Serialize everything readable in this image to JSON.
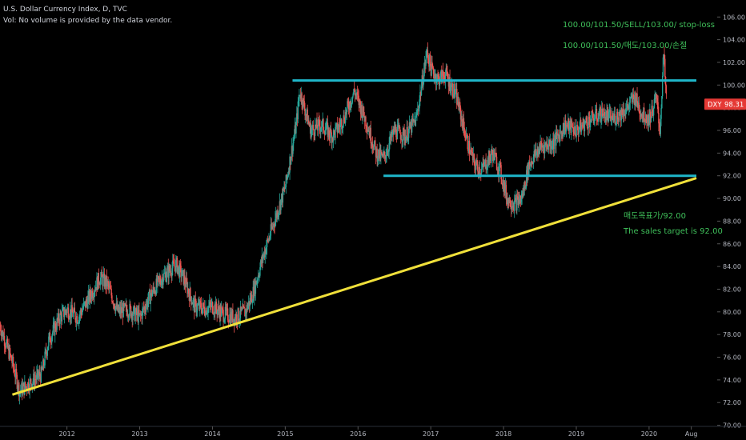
{
  "header": {
    "title": "U.S. Dollar Currency Index, D, TVC",
    "volume_note": "Vol: No volume is provided by the data vendor."
  },
  "price_badge": {
    "symbol": "DXY",
    "value": "98.31",
    "color": "#e53935"
  },
  "annotations": {
    "line1": "100.00/101.50/SELL/103.00/ stop-loss",
    "line2": "100.00/101.50/매도/103.00/손절",
    "line3": "매도목표가/92.00",
    "line4": "The sales target is 92.00"
  },
  "chart_data": {
    "type": "candlestick",
    "x_ticks": [
      "2012",
      "2013",
      "2014",
      "2015",
      "2016",
      "2017",
      "2018",
      "2019",
      "2020",
      "Aug"
    ],
    "y_ticks": [
      "70.00",
      "72.00",
      "74.00",
      "76.00",
      "78.00",
      "80.00",
      "82.00",
      "84.00",
      "86.00",
      "88.00",
      "90.00",
      "92.00",
      "94.00",
      "96.00",
      "98.00",
      "100.00",
      "102.00",
      "104.00",
      "106.00"
    ],
    "ylim": [
      68.7,
      107.5
    ],
    "xlim": [
      2011.08,
      2020.65
    ],
    "last_price": 98.31,
    "price_path": [
      [
        2011.08,
        78.8
      ],
      [
        2011.25,
        75.5
      ],
      [
        2011.35,
        73.0
      ],
      [
        2011.5,
        73.8
      ],
      [
        2011.65,
        74.5
      ],
      [
        2011.75,
        77.5
      ],
      [
        2011.9,
        79.5
      ],
      [
        2012.0,
        80.2
      ],
      [
        2012.15,
        79.5
      ],
      [
        2012.3,
        81.2
      ],
      [
        2012.45,
        83.0
      ],
      [
        2012.55,
        82.5
      ],
      [
        2012.7,
        80.0
      ],
      [
        2012.85,
        80.2
      ],
      [
        2013.0,
        79.5
      ],
      [
        2013.15,
        81.5
      ],
      [
        2013.3,
        83.0
      ],
      [
        2013.5,
        84.2
      ],
      [
        2013.6,
        83.0
      ],
      [
        2013.75,
        80.5
      ],
      [
        2013.9,
        80.3
      ],
      [
        2014.0,
        80.5
      ],
      [
        2014.15,
        79.8
      ],
      [
        2014.3,
        79.5
      ],
      [
        2014.45,
        80.0
      ],
      [
        2014.55,
        81.5
      ],
      [
        2014.7,
        85.0
      ],
      [
        2014.85,
        88.0
      ],
      [
        2015.0,
        91.0
      ],
      [
        2015.15,
        96.5
      ],
      [
        2015.2,
        99.5
      ],
      [
        2015.35,
        96.0
      ],
      [
        2015.5,
        96.5
      ],
      [
        2015.65,
        95.5
      ],
      [
        2015.8,
        97.0
      ],
      [
        2015.95,
        99.5
      ],
      [
        2016.1,
        97.0
      ],
      [
        2016.25,
        94.0
      ],
      [
        2016.35,
        93.5
      ],
      [
        2016.5,
        96.0
      ],
      [
        2016.65,
        95.5
      ],
      [
        2016.8,
        97.0
      ],
      [
        2016.95,
        103.0
      ],
      [
        2017.0,
        101.5
      ],
      [
        2017.1,
        100.5
      ],
      [
        2017.2,
        101.0
      ],
      [
        2017.35,
        99.0
      ],
      [
        2017.5,
        95.0
      ],
      [
        2017.6,
        93.0
      ],
      [
        2017.7,
        92.5
      ],
      [
        2017.85,
        94.0
      ],
      [
        2017.95,
        92.5
      ],
      [
        2018.05,
        90.0
      ],
      [
        2018.15,
        89.5
      ],
      [
        2018.25,
        90.0
      ],
      [
        2018.35,
        93.0
      ],
      [
        2018.5,
        94.5
      ],
      [
        2018.7,
        95.0
      ],
      [
        2018.85,
        96.5
      ],
      [
        2019.0,
        96.0
      ],
      [
        2019.2,
        97.0
      ],
      [
        2019.35,
        97.5
      ],
      [
        2019.5,
        97.0
      ],
      [
        2019.7,
        98.0
      ],
      [
        2019.8,
        99.0
      ],
      [
        2019.9,
        97.5
      ],
      [
        2020.0,
        97.0
      ],
      [
        2020.1,
        98.8
      ],
      [
        2020.15,
        96.0
      ],
      [
        2020.2,
        102.8
      ],
      [
        2020.24,
        98.3
      ]
    ]
  },
  "overlays": {
    "resistance": {
      "price": 100.4,
      "from_year": 2015.1,
      "to_year": 2020.65,
      "color": "#1fb6c9"
    },
    "support": {
      "price": 92.0,
      "from_year": 2016.35,
      "to_year": 2020.65,
      "color": "#1fb6c9"
    },
    "trendline": {
      "from": [
        2011.25,
        72.7
      ],
      "to": [
        2020.65,
        91.8
      ],
      "color": "#f0e03a"
    }
  },
  "colors": {
    "up": "#26a69a",
    "down": "#ef5350",
    "axis_text": "#b2b5be",
    "annotation": "#3fbf5a"
  }
}
